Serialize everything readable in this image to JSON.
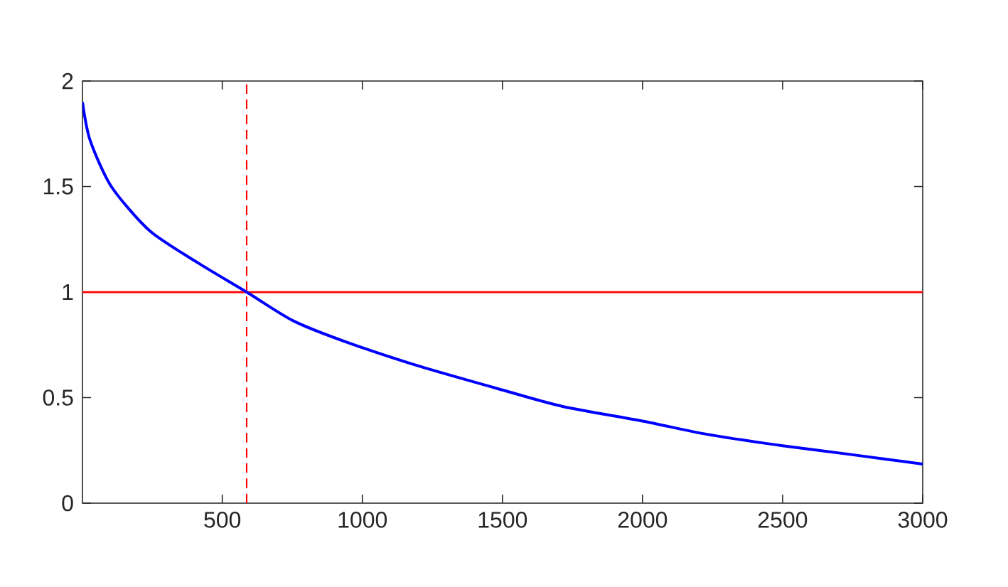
{
  "chart_data": {
    "type": "line",
    "series": [
      {
        "color": "#0000ff",
        "x": [
          1,
          28,
          104,
          241,
          411,
          587,
          753,
          945,
          1200,
          1500,
          1718,
          2000,
          2230,
          2500,
          2740,
          3000
        ],
        "values": [
          1.9,
          1.72,
          1.5,
          1.29,
          1.14,
          1.0,
          0.864,
          0.762,
          0.65,
          0.536,
          0.457,
          0.389,
          0.326,
          0.272,
          0.231,
          0.185
        ]
      }
    ],
    "xlim": [
      1,
      3000
    ],
    "ylim": [
      0,
      2
    ],
    "xticks": [
      500,
      1000,
      1500,
      2000,
      2500,
      3000
    ],
    "yticks": [
      0,
      0.5,
      1,
      1.5,
      2
    ],
    "ref_lines": [
      {
        "axis": "y",
        "value": 1,
        "color": "#ff0000",
        "line_style": "solid"
      },
      {
        "axis": "x",
        "value": 587,
        "color": "#ff0000",
        "line_style": "dashed"
      }
    ],
    "grid": false,
    "marker": "none",
    "line_style": "solid"
  }
}
